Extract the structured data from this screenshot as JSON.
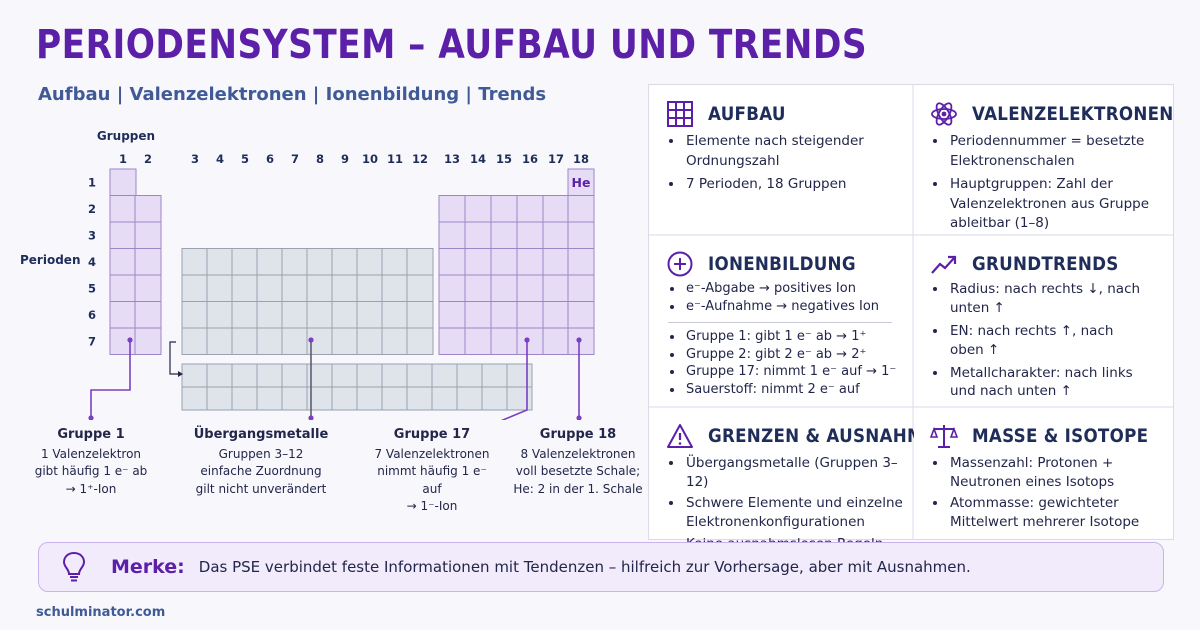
{
  "title": "PERIODENSYSTEM – AUFBAU UND TRENDS",
  "subtitle": "Aufbau | Valenzelektronen | Ionenbildung | Trends",
  "table": {
    "groups_label": "Gruppen",
    "periods_label": "Perioden",
    "group_numbers": [
      "1",
      "2",
      "3",
      "4",
      "5",
      "6",
      "7",
      "8",
      "9",
      "10",
      "11",
      "12",
      "13",
      "14",
      "15",
      "16",
      "17",
      "18"
    ],
    "period_numbers": [
      "1",
      "2",
      "3",
      "4",
      "5",
      "6",
      "7"
    ],
    "helium": "He",
    "colors": {
      "main_group": "#e6dcf6",
      "main_group_border": "#9c86c8",
      "transition": "#dfe3ea",
      "transition_border": "#9aa1b1",
      "accent": "#7b3fc4"
    }
  },
  "captions": {
    "group1": {
      "title": "Gruppe 1",
      "l1": "1 Valenzelektron",
      "l2": "gibt häufig 1 e⁻ ab",
      "l3": "→ 1⁺-Ion"
    },
    "transition": {
      "title": "Übergangsmetalle",
      "l1": "Gruppen 3–12",
      "l2": "einfache Zuordnung",
      "l3": "gilt nicht unverändert"
    },
    "group17": {
      "title": "Gruppe 17",
      "l1": "7 Valenzelektronen",
      "l2": "nimmt häufig 1 e⁻ auf",
      "l3": "→ 1⁻-Ion"
    },
    "group18": {
      "title": "Gruppe 18",
      "l1": "8 Valenzelektronen",
      "l2": "voll besetzte Schale;",
      "l3": "He: 2 in der 1. Schale"
    }
  },
  "cards": {
    "aufbau": {
      "title": "AUFBAU",
      "icon": "grid-icon",
      "items": [
        "Elemente nach steigender Ordnungszahl",
        "7 Perioden, 18 Gruppen"
      ]
    },
    "valenz": {
      "title": "VALENZELEKTRONEN",
      "icon": "atom-icon",
      "items": [
        "Periodennummer = besetzte Elektronenschalen",
        "Hauptgruppen: Zahl der Valenzelektronen aus Gruppe ableitbar (1–8)"
      ]
    },
    "ionen": {
      "title": "IONENBILDUNG",
      "icon": "plus-circle-icon",
      "items_a": [
        "e⁻-Abgabe → positives Ion",
        "e⁻-Aufnahme → negatives Ion"
      ],
      "items_b": [
        "Gruppe 1:  gibt 1 e⁻ ab → 1⁺",
        "Gruppe 2:  gibt 2 e⁻ ab → 2⁺",
        "Gruppe 17: nimmt 1 e⁻ auf → 1⁻",
        "Sauerstoff: nimmt 2 e⁻ auf"
      ]
    },
    "trends": {
      "title": "GRUNDTRENDS",
      "icon": "trend-up-icon",
      "items": [
        "Radius: nach rechts ↓, nach unten ↑",
        "EN: nach rechts ↑, nach oben ↑",
        "Metallcharakter: nach links und nach unten ↑"
      ]
    },
    "grenzen": {
      "title": "GRENZEN & AUSNAHMEN",
      "icon": "warning-icon",
      "items": [
        "Übergangsmetalle (Gruppen 3–12)",
        "Schwere Elemente und einzelne Elektronenkonfigurationen",
        "Keine ausnahmslosen Regeln"
      ]
    },
    "masse": {
      "title": "MASSE & ISOTOPE",
      "icon": "scale-icon",
      "items": [
        "Massenzahl: Protonen + Neutronen eines Isotops",
        "Atommasse: gewichteter Mittelwert mehrerer Isotope"
      ]
    }
  },
  "merke": {
    "label": "Merke:",
    "text": "Das PSE verbindet feste Informationen mit Tendenzen – hilfreich zur Vorhersage, aber mit Ausnahmen.",
    "icon": "lightbulb-icon"
  },
  "footer": "schulminator.com"
}
